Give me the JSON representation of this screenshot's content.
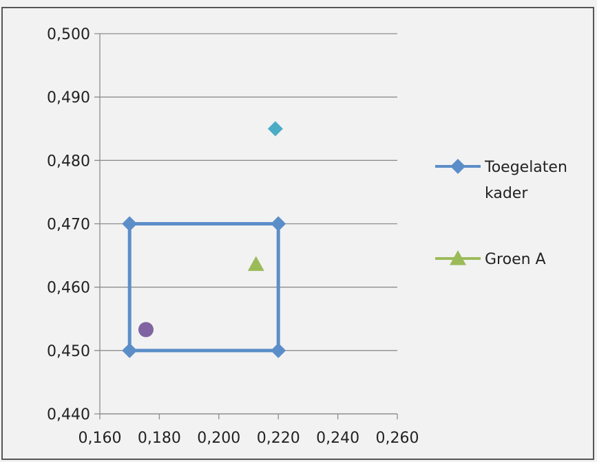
{
  "chart_data": {
    "type": "scatter",
    "title": "",
    "xlabel": "",
    "ylabel": "",
    "xlim": [
      0.16,
      0.26
    ],
    "ylim": [
      0.44,
      0.5
    ],
    "x_ticks": [
      0.16,
      0.18,
      0.2,
      0.22,
      0.24,
      0.26
    ],
    "x_tick_labels": [
      "0,160",
      "0,180",
      "0,200",
      "0,220",
      "0,240",
      "0,260"
    ],
    "y_ticks": [
      0.44,
      0.45,
      0.46,
      0.47,
      0.48,
      0.49,
      0.5
    ],
    "y_tick_labels": [
      "0,440",
      "0,450",
      "0,460",
      "0,470",
      "0,480",
      "0,490",
      "0,500"
    ],
    "grid": "horizontal",
    "legend_position": "right",
    "series": [
      {
        "name": "Toegelaten kader",
        "legend_lines": [
          "Toegelaten",
          "kader"
        ],
        "marker": "diamond",
        "line": true,
        "color": "#5b8ec8",
        "points": [
          [
            0.17,
            0.45
          ],
          [
            0.17,
            0.47
          ],
          [
            0.22,
            0.47
          ],
          [
            0.22,
            0.45
          ],
          [
            0.17,
            0.45
          ]
        ]
      },
      {
        "name": "Groen A",
        "legend_lines": [
          "Groen A"
        ],
        "marker": "triangle",
        "line": false,
        "color": "#9bbb59",
        "points": [
          [
            0.2125,
            0.4636
          ]
        ]
      },
      {
        "name": "",
        "marker": "diamond",
        "line": false,
        "color": "#4bacc6",
        "in_legend": false,
        "points": [
          [
            0.219,
            0.485
          ]
        ]
      },
      {
        "name": "",
        "marker": "circle",
        "line": false,
        "color": "#8064a2",
        "in_legend": false,
        "points": [
          [
            0.1755,
            0.4533
          ]
        ]
      }
    ]
  }
}
